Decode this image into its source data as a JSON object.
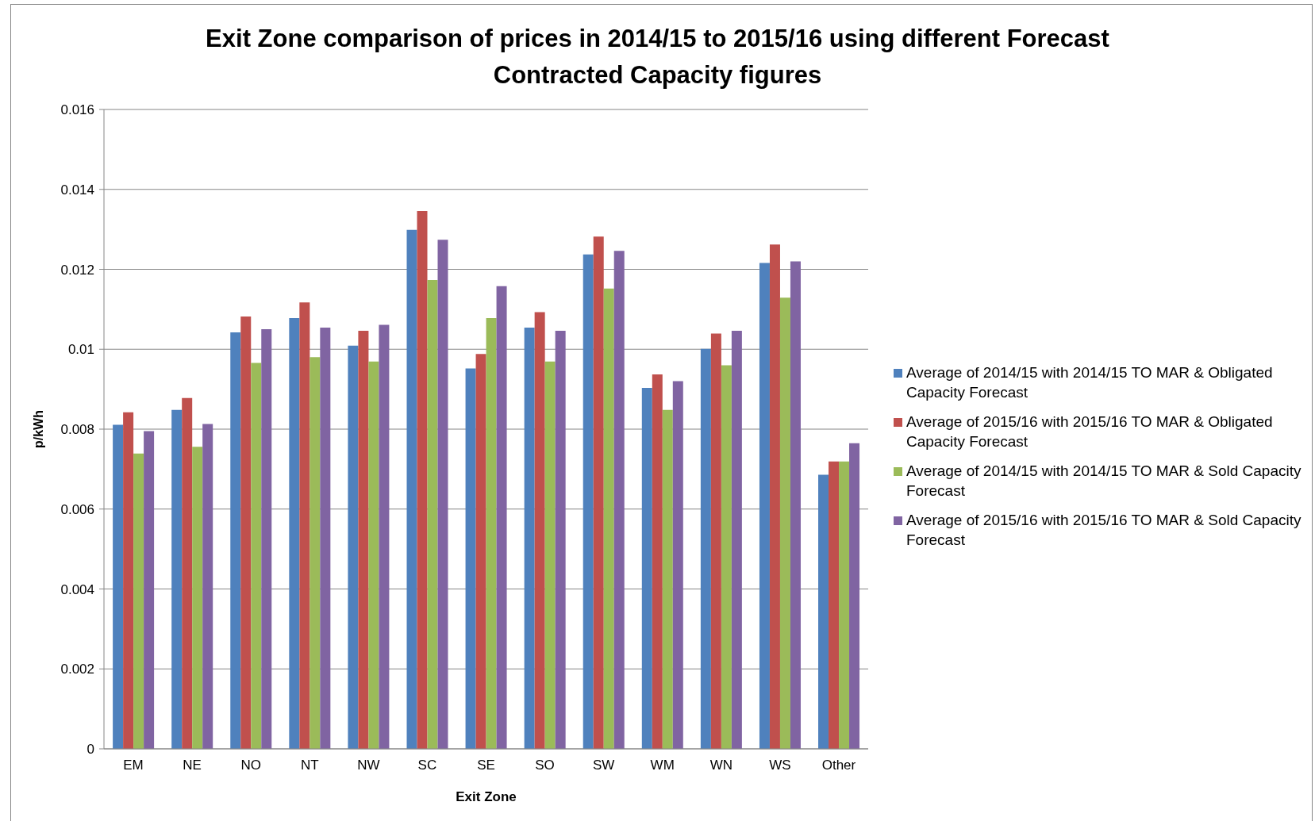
{
  "chart_data": {
    "type": "bar",
    "title": "Exit Zone comparison of prices in 2014/15 to 2015/16 using different Forecast Contracted Capacity figures",
    "xlabel": "Exit Zone",
    "ylabel": "p/kWh",
    "categories": [
      "EM",
      "NE",
      "NO",
      "NT",
      "NW",
      "SC",
      "SE",
      "SO",
      "SW",
      "WM",
      "WN",
      "WS",
      "Other"
    ],
    "series": [
      {
        "name": "Average of 2014/15 with 2014/15 TO MAR & Obligated Capacity Forecast",
        "color": "#4f81bd",
        "values": [
          0.00811,
          0.00848,
          0.01042,
          0.01078,
          0.01009,
          0.01299,
          0.00952,
          0.01054,
          0.01237,
          0.00903,
          0.01001,
          0.01216,
          0.00686
        ]
      },
      {
        "name": "Average of 2015/16 with 2015/16 TO MAR & Obligated Capacity Forecast",
        "color": "#c0504d",
        "values": [
          0.00842,
          0.00878,
          0.01082,
          0.01117,
          0.01046,
          0.01346,
          0.00988,
          0.01093,
          0.01282,
          0.00937,
          0.01039,
          0.01262,
          0.00719
        ]
      },
      {
        "name": "Average of 2014/15 with 2014/15 TO MAR & Sold Capacity Forecast",
        "color": "#9bbb59",
        "values": [
          0.00739,
          0.00756,
          0.00966,
          0.0098,
          0.00969,
          0.01173,
          0.01078,
          0.00969,
          0.01152,
          0.00848,
          0.0096,
          0.01129,
          0.00719
        ]
      },
      {
        "name": "Average of 2015/16 with 2015/16 TO MAR & Sold Capacity Forecast",
        "color": "#8064a2",
        "values": [
          0.00795,
          0.00813,
          0.0105,
          0.01054,
          0.01061,
          0.01274,
          0.01158,
          0.01046,
          0.01246,
          0.0092,
          0.01046,
          0.0122,
          0.00765
        ]
      }
    ],
    "ylim": [
      0,
      0.016
    ],
    "yticks": [
      0,
      0.002,
      0.004,
      0.006,
      0.008,
      0.01,
      0.012,
      0.014,
      0.016
    ],
    "grid": "y",
    "legend": "right"
  }
}
